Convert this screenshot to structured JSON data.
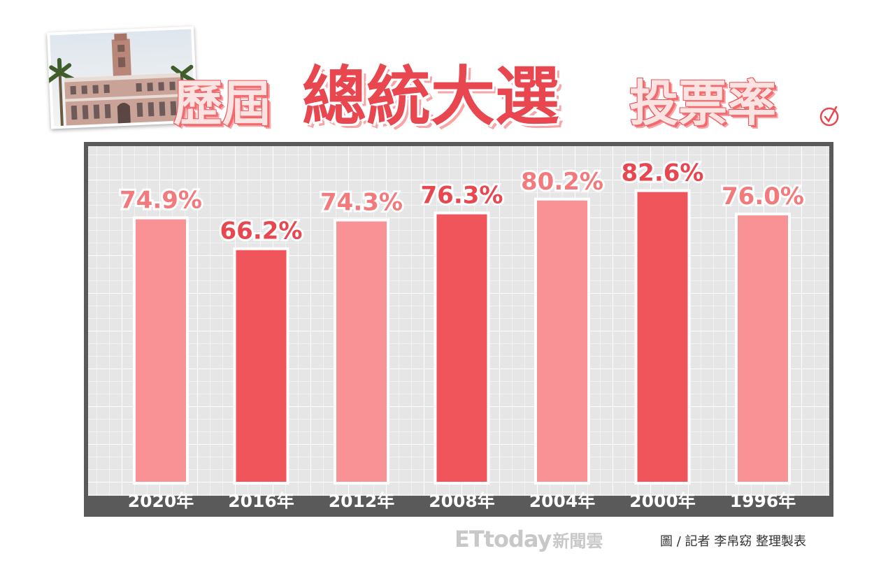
{
  "header": {
    "title_part1": "歷屆",
    "title_part2": "總統大選",
    "title_part3": "投票率",
    "photo_icon": "presidential-office-building-photo",
    "mark_icon": "vote-stamp-icon"
  },
  "chart_data": {
    "type": "bar",
    "title": "歷屆總統大選投票率",
    "categories": [
      "2020年",
      "2016年",
      "2012年",
      "2008年",
      "2004年",
      "2000年",
      "1996年"
    ],
    "values": [
      74.9,
      66.2,
      74.3,
      76.3,
      80.2,
      82.6,
      76.0
    ],
    "value_labels": [
      "74.9%",
      "66.2%",
      "74.3%",
      "76.3%",
      "80.2%",
      "82.6%",
      "76.0%"
    ],
    "unit": "%",
    "ylim": [
      0,
      100
    ],
    "grid": true,
    "legend": "none",
    "colors": {
      "light_bar": "#f99294",
      "dark_bar": "#f0555b",
      "dark_label": "#e8474f",
      "light_label": "#f27a7d",
      "plot_background": "#e6e6e6",
      "frame": "#5a5a5a"
    },
    "bar_tone": [
      "light",
      "dark",
      "light",
      "dark",
      "light",
      "dark",
      "light"
    ]
  },
  "footer": {
    "logo": "ETtoday",
    "logo_suffix": "新聞雲",
    "credit": "圖 / 記者 李帛窈 整理製表"
  }
}
